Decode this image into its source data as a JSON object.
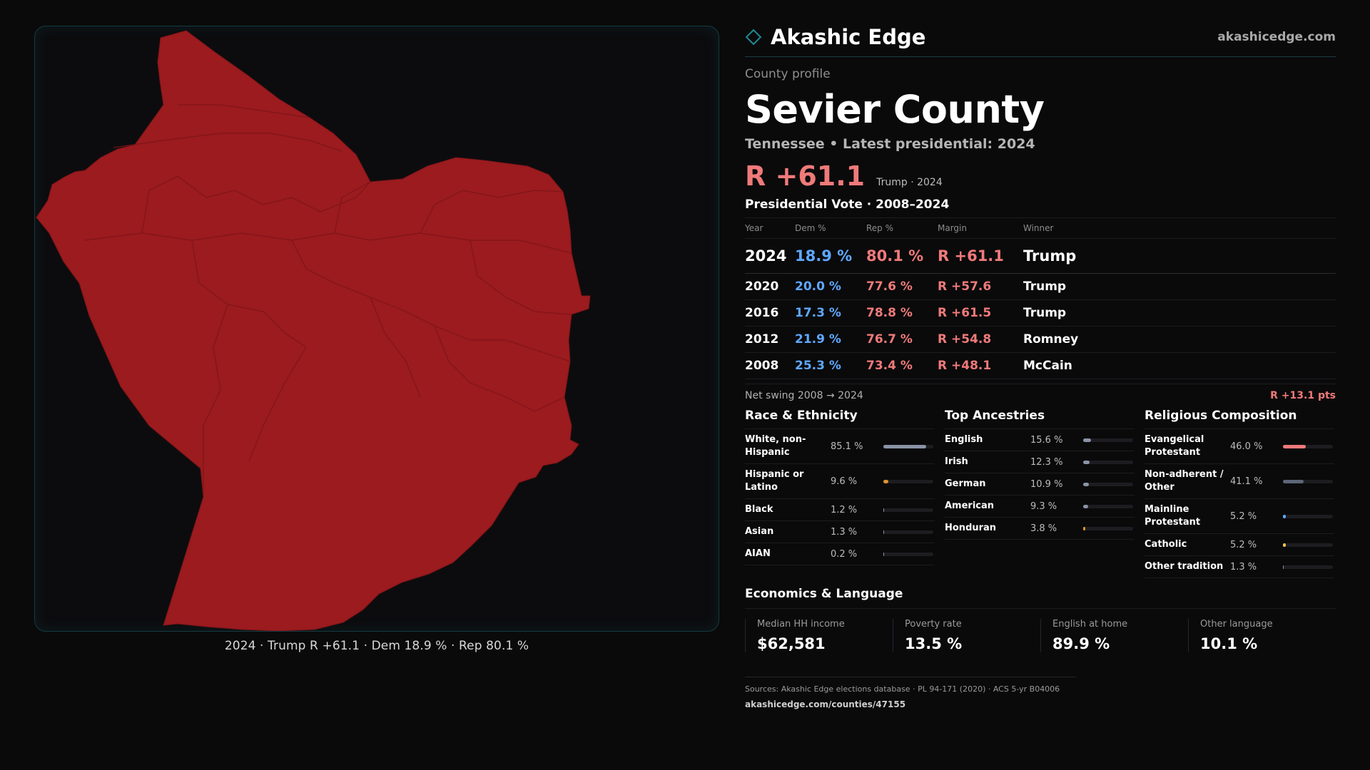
{
  "colors": {
    "background": "#0a0a0b",
    "accent": "#1e6b72",
    "republican": "#f07a7a",
    "democrat": "#5fa8ff",
    "county_fill": "#9b1b1f"
  },
  "map": {
    "caption": "2024 · Trump R +61.1 · Dem 18.9 % · Rep 80.1 %"
  },
  "header": {
    "brand_icon": "diamond-icon",
    "brand_name": "Akashic Edge",
    "site_url": "akashicedge.com"
  },
  "profile": {
    "eyebrow": "County profile",
    "county_name": "Sevier County",
    "subtitle": "Tennessee • Latest presidential: 2024",
    "headline_margin": "R +61.1",
    "headline_note": "Trump · 2024"
  },
  "presidential": {
    "title": "Presidential Vote · 2008–2024",
    "columns": [
      "Year",
      "Dem %",
      "Rep %",
      "Margin",
      "Winner"
    ],
    "rows": [
      {
        "year": "2024",
        "dem": "18.9 %",
        "rep": "80.1 %",
        "margin": "R +61.1",
        "winner": "Trump"
      },
      {
        "year": "2020",
        "dem": "20.0 %",
        "rep": "77.6 %",
        "margin": "R +57.6",
        "winner": "Trump"
      },
      {
        "year": "2016",
        "dem": "17.3 %",
        "rep": "78.8 %",
        "margin": "R +61.5",
        "winner": "Trump"
      },
      {
        "year": "2012",
        "dem": "21.9 %",
        "rep": "76.7 %",
        "margin": "R +54.8",
        "winner": "Romney"
      },
      {
        "year": "2008",
        "dem": "25.3 %",
        "rep": "73.4 %",
        "margin": "R +48.1",
        "winner": "McCain"
      }
    ],
    "swing_label": "Net swing 2008 → 2024",
    "swing_value": "R +13.1 pts"
  },
  "race": {
    "title": "Race & Ethnicity",
    "items": [
      {
        "label": "White, non-Hispanic",
        "value": "85.1 %",
        "pct": 85.1,
        "color": "#8a93a6"
      },
      {
        "label": "Hispanic or Latino",
        "value": "9.6 %",
        "pct": 9.6,
        "color": "#e0922e"
      },
      {
        "label": "Black",
        "value": "1.2 %",
        "pct": 1.2,
        "color": "#8a93a6"
      },
      {
        "label": "Asian",
        "value": "1.3 %",
        "pct": 1.3,
        "color": "#8a93a6"
      },
      {
        "label": "AIAN",
        "value": "0.2 %",
        "pct": 0.2,
        "color": "#8a93a6"
      }
    ]
  },
  "ancestry": {
    "title": "Top Ancestries",
    "items": [
      {
        "label": "English",
        "value": "15.6 %",
        "pct": 15.6,
        "color": "#8a93a6"
      },
      {
        "label": "Irish",
        "value": "12.3 %",
        "pct": 12.3,
        "color": "#8a93a6"
      },
      {
        "label": "German",
        "value": "10.9 %",
        "pct": 10.9,
        "color": "#8a93a6"
      },
      {
        "label": "American",
        "value": "9.3 %",
        "pct": 9.3,
        "color": "#8a93a6"
      },
      {
        "label": "Honduran",
        "value": "3.8 %",
        "pct": 3.8,
        "color": "#e0922e"
      }
    ]
  },
  "religion": {
    "title": "Religious Composition",
    "items": [
      {
        "label": "Evangelical Protestant",
        "value": "46.0 %",
        "pct": 46.0,
        "color": "#f07a7a"
      },
      {
        "label": "Non-adherent / Other",
        "value": "41.1 %",
        "pct": 41.1,
        "color": "#5d6577"
      },
      {
        "label": "Mainline Protestant",
        "value": "5.2 %",
        "pct": 5.2,
        "color": "#5fa8ff"
      },
      {
        "label": "Catholic",
        "value": "5.2 %",
        "pct": 5.2,
        "color": "#f2c14e"
      },
      {
        "label": "Other tradition",
        "value": "1.3 %",
        "pct": 1.3,
        "color": "#8a93a6"
      }
    ]
  },
  "economics": {
    "title": "Economics & Language",
    "items": [
      {
        "label": "Median HH income",
        "value": "$62,581"
      },
      {
        "label": "Poverty rate",
        "value": "13.5 %"
      },
      {
        "label": "English at home",
        "value": "89.9 %"
      },
      {
        "label": "Other language",
        "value": "10.1 %"
      }
    ]
  },
  "footer": {
    "sources": "Sources: Akashic Edge elections database · PL 94-171 (2020) · ACS 5-yr B04006",
    "url": "akashicedge.com/counties/47155"
  }
}
